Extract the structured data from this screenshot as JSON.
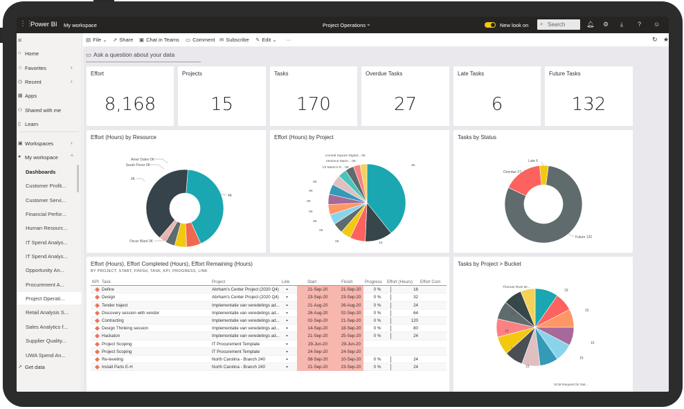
{
  "topbar": {
    "app": "Power BI",
    "workspace": "My workspace",
    "report_title": "Project Operations",
    "new_look": "New look on",
    "search_placeholder": "Search"
  },
  "sidebar": {
    "items": [
      {
        "label": "Home"
      },
      {
        "label": "Favorites"
      },
      {
        "label": "Recent"
      },
      {
        "label": "Apps"
      },
      {
        "label": "Shared with me"
      },
      {
        "label": "Learn"
      },
      {
        "label": "Workspaces"
      },
      {
        "label": "My workspace"
      }
    ],
    "sub_items": [
      {
        "label": "Dashboards"
      },
      {
        "label": "Customer Profit..."
      },
      {
        "label": "Customer Servi..."
      },
      {
        "label": "Financial Perfor..."
      },
      {
        "label": "Human Resourc..."
      },
      {
        "label": "IT Spend Analys..."
      },
      {
        "label": "IT Spend Analys..."
      },
      {
        "label": "Opportunity An..."
      },
      {
        "label": "Procurement A..."
      },
      {
        "label": "Project Operati..."
      },
      {
        "label": "Retail Analysis S..."
      },
      {
        "label": "Sales Analytics f..."
      },
      {
        "label": "Supplier Quality..."
      },
      {
        "label": "UWA Spend An..."
      }
    ],
    "get_data": "Get data"
  },
  "actionbar": {
    "file": "File",
    "share": "Share",
    "chat": "Chat in Teams",
    "comment": "Comment",
    "subscribe": "Subscribe",
    "edit": "Edit",
    "more": "···"
  },
  "qna": "Ask a question about your data",
  "kpis": [
    {
      "title": "Effort",
      "value": "8,168"
    },
    {
      "title": "Projects",
      "value": "15"
    },
    {
      "title": "Tasks",
      "value": "170"
    },
    {
      "title": "Overdue Tasks",
      "value": "27"
    },
    {
      "title": "Late Tasks",
      "value": "6"
    },
    {
      "title": "Future Tasks",
      "value": "132"
    }
  ],
  "charts": {
    "effort_by_resource": {
      "title": "Effort (Hours) by Resource",
      "labels": [
        "Amer Dalen 0K",
        "Sarah Perez 0K",
        "0K",
        "4K",
        "Oscar Ward 3K"
      ]
    },
    "effort_by_project": {
      "title": "Effort (Hours) by Project",
      "labels": [
        "Central Square Digital... 0K",
        "Version2 Marie... 0K",
        "V3 Marie's R... 0K",
        "0K",
        "0K",
        "0K",
        "0K",
        "0K",
        "0K",
        "0K",
        "1K",
        "3K"
      ]
    },
    "tasks_by_status": {
      "title": "Tasks by Status",
      "labels": [
        "Late 6",
        "Overdue 27",
        "Future 132"
      ]
    },
    "tasks_by_bucket": {
      "title": "Tasks by Project > Bucket",
      "labels": [
        "Thomas River Br...",
        "19",
        "15",
        "15",
        "15",
        "15",
        "15",
        "15",
        "15",
        "15",
        "SCM Request for Nat..."
      ]
    }
  },
  "chart_data": [
    {
      "type": "pie",
      "title": "Effort (Hours) by Resource",
      "series": [
        {
          "name": "Oscar Ward",
          "values": [
            3
          ]
        },
        {
          "name": "",
          "values": [
            4
          ]
        },
        {
          "name": "Amer Dalen",
          "values": [
            0
          ]
        },
        {
          "name": "Sarah Perez",
          "values": [
            0
          ]
        }
      ],
      "colors": {
        "teal": "#1aa7b1",
        "dark": "#37434a",
        "red": "#ef6950",
        "yellow": "#f2c811"
      }
    },
    {
      "type": "pie",
      "title": "Effort (Hours) by Project",
      "values_k": [
        3,
        1,
        0,
        0,
        0,
        0,
        0,
        0,
        0,
        0,
        0,
        0
      ]
    },
    {
      "type": "pie",
      "title": "Tasks by Status",
      "categories": [
        "Future",
        "Overdue",
        "Late"
      ],
      "values": [
        132,
        27,
        6
      ]
    },
    {
      "type": "pie",
      "title": "Tasks by Project > Bucket",
      "values": [
        19,
        15,
        15,
        15,
        15,
        15,
        15,
        15,
        15
      ]
    }
  ],
  "table": {
    "title": "Effort (Hours), Effort Completed (Hours), Effort Remaining (Hours)",
    "subtitle": "BY PROJECT, START, FINISH, TASK, KPI, PROGRESS, LINK",
    "headers": [
      "KPI",
      "Task",
      "Project",
      "Link",
      "Start",
      "Finish",
      "Progress",
      "Effort (Hours)",
      "Effort Com"
    ],
    "rows": [
      {
        "task": "Define",
        "project": "Abrham's Center Project (2020 Q4)",
        "start": "21-Sep-20",
        "finish": "21-Sep-20",
        "progress": "0 %",
        "effort": "16"
      },
      {
        "task": "Design",
        "project": "Abrham's Center Project (2020 Q4)",
        "start": "23-Sep-20",
        "finish": "23-Sep-20",
        "progress": "0 %",
        "effort": "32"
      },
      {
        "task": "Tender traject",
        "project": "Implementatie van veredelings ad...",
        "start": "21-Aug-20",
        "finish": "26-Aug-20",
        "progress": "0 %",
        "effort": "24"
      },
      {
        "task": "Discovery session with vendor",
        "project": "Implementatie van veredelings ad...",
        "start": "26-Aug-20",
        "finish": "02-Sep-20",
        "progress": "0 %",
        "effort": "64"
      },
      {
        "task": "Contracting",
        "project": "Implementatie van veredelings ad...",
        "start": "02-Sep-20",
        "finish": "21-Sep-20",
        "progress": "0 %",
        "effort": "120"
      },
      {
        "task": "Design Thinking session",
        "project": "Implementatie van veredelings ad...",
        "start": "14-Sep-20",
        "finish": "18-Sep-20",
        "progress": "0 %",
        "effort": "80"
      },
      {
        "task": "Hackaton",
        "project": "Implementatie van veredelings ad...",
        "start": "21-Sep-20",
        "finish": "25-Sep-20",
        "progress": "0 %",
        "effort": "24"
      },
      {
        "task": "Project Scoping",
        "project": "IT Procurement Template",
        "start": "29-Jun-20",
        "finish": "29-Jun-20",
        "progress": "",
        "effort": ""
      },
      {
        "task": "Project Scoping",
        "project": "IT Procurement Template",
        "start": "24-Sep-20",
        "finish": "24-Sep-20",
        "progress": "",
        "effort": ""
      },
      {
        "task": "Re-leveling",
        "project": "North Carolina - Branch 240",
        "start": "08-Sep-20",
        "finish": "10-Sep-20",
        "progress": "0 %",
        "effort": "24"
      },
      {
        "task": "Install Parts E-H",
        "project": "North Carolina - Branch 240",
        "start": "21-Sep-20",
        "finish": "23-Sep-20",
        "progress": "0 %",
        "effort": "24"
      }
    ]
  }
}
